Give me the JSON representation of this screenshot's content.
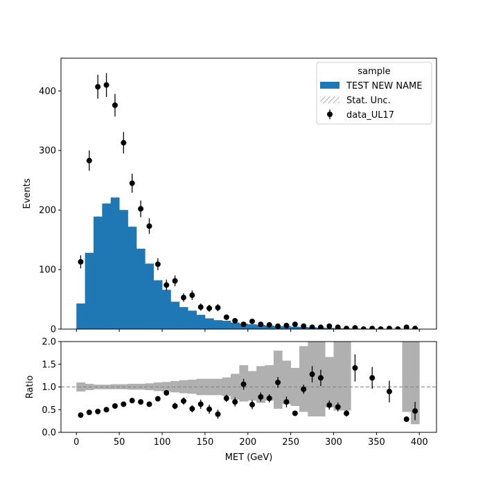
{
  "chart_data": {
    "type": "histogram-ratio",
    "main": {
      "ylabel": "Events",
      "ylim": [
        0,
        455
      ],
      "yticks": [
        0,
        100,
        200,
        300,
        400
      ],
      "bin_edges": [
        0,
        10,
        20,
        30,
        40,
        50,
        60,
        70,
        80,
        90,
        100,
        110,
        120,
        130,
        140,
        150,
        160,
        170,
        180,
        190,
        200,
        210,
        220,
        230,
        240,
        250,
        260,
        270,
        280,
        290,
        300,
        310,
        320,
        330,
        340,
        350,
        360,
        370,
        380,
        390,
        400
      ],
      "mc": {
        "name": "TEST NEW NAME",
        "color": "#1f77b4",
        "values": [
          43,
          128,
          189,
          211,
          221,
          200,
          172,
          135,
          110,
          82,
          66,
          46,
          37,
          31,
          24,
          18,
          15,
          14,
          11,
          9,
          8,
          7,
          6,
          5,
          5,
          4,
          3.5,
          3,
          2.5,
          2,
          1.5,
          1.2,
          1,
          0.8,
          0.7,
          0.6,
          0.5,
          0.4,
          0.4,
          0.3
        ]
      },
      "data": {
        "name": "data_UL17",
        "x": [
          5,
          15,
          25,
          35,
          45,
          55,
          65,
          75,
          85,
          95,
          105,
          115,
          125,
          135,
          145,
          155,
          165,
          175,
          185,
          195,
          205,
          215,
          225,
          235,
          245,
          255,
          265,
          275,
          285,
          295,
          305,
          315,
          325,
          335,
          345,
          355,
          365,
          375,
          385,
          395
        ],
        "y": [
          113,
          283,
          407,
          410,
          376,
          313,
          245,
          202,
          173,
          109,
          74,
          81,
          53,
          57,
          37,
          35,
          36,
          20,
          14,
          8,
          13,
          8,
          7,
          5,
          6,
          8,
          5,
          3,
          3,
          5,
          3,
          1,
          2,
          0,
          1,
          0,
          1,
          0,
          3,
          1
        ],
        "err": [
          11,
          17,
          20,
          20,
          19,
          18,
          16,
          14,
          13,
          10,
          9,
          9,
          7,
          8,
          6,
          6,
          6,
          4.5,
          3.7,
          2.8,
          3.6,
          2.8,
          2.6,
          2.2,
          2.4,
          2.8,
          2.2,
          1.7,
          1.7,
          2.2,
          1.7,
          1,
          1.4,
          0,
          1,
          0,
          1,
          0,
          1.7,
          1
        ]
      },
      "legend": {
        "title": "sample",
        "entries": [
          "TEST NEW NAME",
          "Stat. Unc.",
          "data_UL17"
        ],
        "placement": "upper right"
      }
    },
    "ratio": {
      "ylabel": "Ratio",
      "xlabel": "MET (GeV)",
      "ylim": [
        0,
        2
      ],
      "yticks": [
        "0.0",
        "0.5",
        "1.0",
        "1.5",
        "2.0"
      ],
      "xlim": [
        -18,
        420
      ],
      "xticks": [
        0,
        50,
        100,
        150,
        200,
        250,
        300,
        350,
        400
      ],
      "reference_line": 1.0,
      "band_color": "#b0b0b0",
      "band_lo": [
        0.9,
        0.93,
        0.95,
        0.95,
        0.95,
        0.95,
        0.94,
        0.94,
        0.93,
        0.91,
        0.9,
        0.88,
        0.86,
        0.85,
        0.82,
        0.82,
        0.82,
        0.8,
        0.72,
        0.68,
        0.7,
        0.65,
        0.7,
        0.52,
        0.62,
        0.58,
        0.45,
        0.35,
        0.35,
        0.55,
        0.48,
        0.48,
        null,
        null,
        null,
        null,
        null,
        null,
        0.45,
        0.18
      ],
      "band_hi": [
        1.1,
        1.07,
        1.05,
        1.05,
        1.06,
        1.06,
        1.07,
        1.07,
        1.08,
        1.1,
        1.11,
        1.13,
        1.15,
        1.16,
        1.18,
        1.18,
        1.18,
        1.21,
        1.29,
        1.48,
        1.35,
        1.46,
        1.48,
        1.8,
        1.58,
        1.42,
        1.9,
        2.0,
        2.0,
        1.66,
        2.0,
        2.0,
        null,
        null,
        null,
        null,
        null,
        null,
        2.0,
        2.0
      ],
      "points": {
        "x": [
          5,
          15,
          25,
          35,
          45,
          55,
          65,
          75,
          85,
          95,
          105,
          115,
          125,
          135,
          145,
          155,
          165,
          175,
          185,
          195,
          205,
          215,
          225,
          235,
          245,
          255,
          265,
          275,
          285,
          295,
          305,
          315,
          325,
          345,
          365,
          385,
          395
        ],
        "y": [
          0.38,
          0.44,
          0.46,
          0.5,
          0.58,
          0.62,
          0.7,
          0.67,
          0.62,
          0.74,
          0.87,
          0.58,
          0.69,
          0.52,
          0.62,
          0.51,
          0.4,
          0.75,
          0.67,
          1.06,
          0.61,
          0.78,
          0.75,
          1.1,
          0.67,
          0.42,
          0.95,
          1.28,
          1.2,
          0.6,
          0.56,
          0.42,
          1.42,
          1.2,
          0.9,
          0.29,
          0.47
        ],
        "err": [
          0.04,
          0.03,
          0.03,
          0.03,
          0.03,
          0.04,
          0.04,
          0.05,
          0.05,
          0.05,
          0.06,
          0.07,
          0.08,
          0.08,
          0.1,
          0.1,
          0.1,
          0.08,
          0.1,
          0.12,
          0.1,
          0.1,
          0.09,
          0.12,
          0.12,
          0.05,
          0.1,
          0.18,
          0.18,
          0.1,
          0.1,
          0.07,
          0.3,
          0.24,
          0.24,
          0.05,
          0.2
        ]
      }
    }
  }
}
